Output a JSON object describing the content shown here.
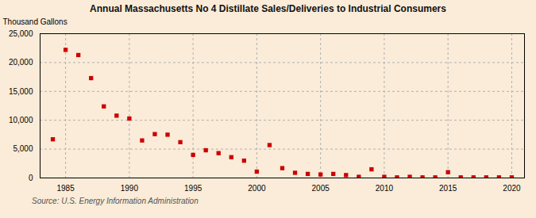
{
  "chart_data": {
    "type": "scatter",
    "title": "Annual Massachusetts No 4 Distillate Sales/Deliveries to Industrial Consumers",
    "ylabel": "Thousand Gallons",
    "annotations": [
      "Source: U.S. Energy Information Administration"
    ],
    "x": [
      1984,
      1985,
      1986,
      1987,
      1988,
      1989,
      1990,
      1991,
      1992,
      1993,
      1994,
      1995,
      1996,
      1997,
      1998,
      1999,
      2000,
      2001,
      2002,
      2003,
      2004,
      2005,
      2006,
      2007,
      2008,
      2009,
      2010,
      2011,
      2012,
      2013,
      2014,
      2015,
      2016,
      2017,
      2018,
      2019,
      2020
    ],
    "values": [
      6700,
      22200,
      21300,
      17300,
      12400,
      10800,
      10300,
      6500,
      7600,
      7500,
      6200,
      4000,
      4800,
      4300,
      3600,
      3000,
      1100,
      5700,
      1700,
      900,
      700,
      600,
      700,
      500,
      200,
      1500,
      200,
      100,
      200,
      100,
      100,
      1000,
      100,
      100,
      100,
      100,
      100
    ],
    "color": "#cc0000",
    "marker": "square",
    "xlim": [
      1983,
      2021
    ],
    "xticks": [
      1985,
      1990,
      1995,
      2000,
      2005,
      2010,
      2015,
      2020
    ],
    "ylim": [
      0,
      25000
    ],
    "yticks": [
      0,
      {
        "value": 5000,
        "label": "5,000"
      },
      {
        "value": 10000,
        "label": "10,000"
      },
      {
        "value": 15000,
        "label": "15,000"
      },
      {
        "value": 20000,
        "label": "20,000"
      },
      {
        "value": 25000,
        "label": "25,000"
      }
    ],
    "grid": true
  }
}
